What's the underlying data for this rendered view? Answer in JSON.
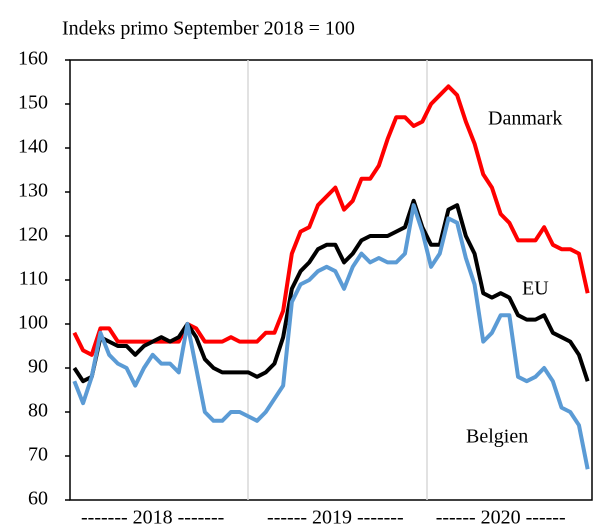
{
  "chart_data": {
    "type": "line",
    "subtitle": "Indeks primo September 2018 = 100",
    "annotations": [
      "Danmark",
      "EU",
      "Belgien"
    ],
    "categories": [
      null,
      null,
      null,
      null,
      null,
      null,
      null,
      null,
      null,
      "------- 2018 -------",
      null,
      null,
      null,
      null,
      null,
      null,
      null,
      null,
      null,
      null,
      null,
      null,
      null,
      null,
      null,
      null,
      null,
      null,
      null,
      null,
      "------ 2019 -------",
      null,
      null,
      null,
      null,
      null,
      null,
      null,
      null,
      null,
      null,
      null,
      null,
      null,
      null,
      null,
      null,
      null,
      null,
      "------ 2020 ------",
      null,
      null,
      null,
      null,
      null,
      null,
      null,
      null,
      null,
      null
    ],
    "series": [
      {
        "name": "Danmark",
        "color": "#ff0000",
        "values": [
          98,
          94,
          93,
          99,
          99,
          96,
          96,
          96,
          96,
          96,
          96,
          96,
          96,
          100,
          99,
          96,
          96,
          96,
          97,
          96,
          96,
          96,
          98,
          98,
          103,
          116,
          121,
          122,
          127,
          129,
          131,
          126,
          128,
          133,
          133,
          136,
          142,
          147,
          147,
          145,
          146,
          150,
          152,
          154,
          152,
          146,
          141,
          134,
          131,
          125,
          123,
          119,
          119,
          119,
          122,
          118,
          117,
          117,
          116,
          107
        ]
      },
      {
        "name": "EU",
        "color": "#000000",
        "values": [
          90,
          87,
          88,
          97,
          96,
          95,
          95,
          93,
          95,
          96,
          97,
          96,
          97,
          100,
          97,
          92,
          90,
          89,
          89,
          89,
          89,
          88,
          89,
          91,
          97,
          108,
          112,
          114,
          117,
          118,
          118,
          114,
          116,
          119,
          120,
          120,
          120,
          121,
          122,
          128,
          122,
          118,
          118,
          126,
          127,
          120,
          116,
          107,
          106,
          107,
          106,
          102,
          101,
          101,
          102,
          98,
          97,
          96,
          93,
          87
        ]
      },
      {
        "name": "Belgien",
        "color": "#5b9bd5",
        "values": [
          87,
          82,
          88,
          98,
          93,
          91,
          90,
          86,
          90,
          93,
          91,
          91,
          89,
          100,
          90,
          80,
          78,
          78,
          80,
          80,
          79,
          78,
          80,
          83,
          86,
          105,
          109,
          110,
          112,
          113,
          112,
          108,
          113,
          116,
          114,
          115,
          114,
          114,
          116,
          127,
          121,
          113,
          116,
          124,
          123,
          115,
          109,
          96,
          98,
          102,
          102,
          88,
          87,
          88,
          90,
          87,
          81,
          80,
          77,
          67
        ]
      }
    ],
    "ylim": [
      60,
      160
    ],
    "yticks": [
      60,
      70,
      80,
      90,
      100,
      110,
      120,
      130,
      140,
      150,
      160
    ]
  }
}
